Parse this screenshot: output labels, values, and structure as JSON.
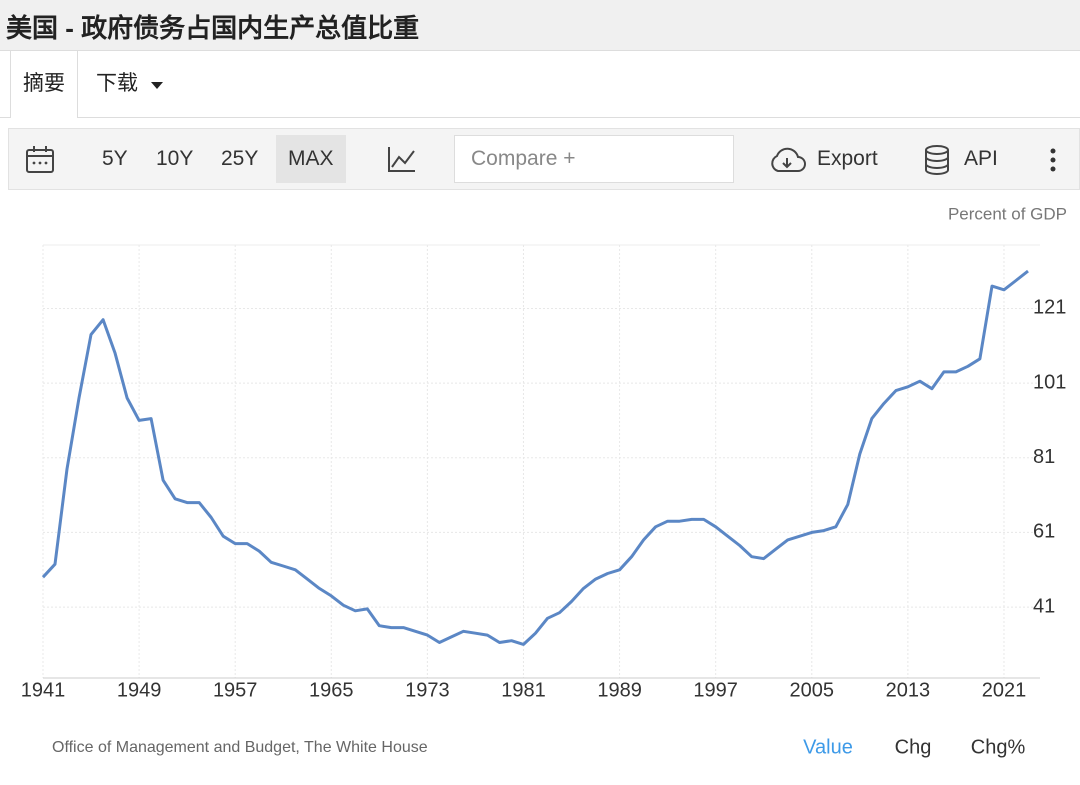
{
  "header": {
    "title": "美国 - 政府债务占国内生产总值比重"
  },
  "tabs": [
    "摘要",
    "下载"
  ],
  "toolbar": {
    "ranges": [
      "5Y",
      "10Y",
      "25Y",
      "MAX"
    ],
    "compare": "Compare +",
    "export": "Export",
    "api": "API"
  },
  "footer": {
    "source": "Office of Management and Budget, The White House",
    "modes": [
      "Value",
      "Chg",
      "Chg%"
    ]
  },
  "chart_data": {
    "type": "line",
    "unit_label": "Percent of GDP",
    "color": "#5b87c5",
    "x": [
      1941,
      1942,
      1943,
      1944,
      1945,
      1946,
      1947,
      1948,
      1949,
      1950,
      1951,
      1952,
      1953,
      1954,
      1955,
      1956,
      1957,
      1958,
      1959,
      1960,
      1961,
      1962,
      1963,
      1964,
      1965,
      1966,
      1967,
      1968,
      1969,
      1970,
      1971,
      1972,
      1973,
      1974,
      1975,
      1976,
      1977,
      1978,
      1979,
      1980,
      1981,
      1982,
      1983,
      1984,
      1985,
      1986,
      1987,
      1988,
      1989,
      1990,
      1991,
      1992,
      1993,
      1994,
      1995,
      1996,
      1997,
      1998,
      1999,
      2000,
      2001,
      2002,
      2003,
      2004,
      2005,
      2006,
      2007,
      2008,
      2009,
      2010,
      2011,
      2012,
      2013,
      2014,
      2015,
      2016,
      2017,
      2018,
      2019,
      2020,
      2021,
      2022,
      2023
    ],
    "values": [
      49,
      52.5,
      78,
      97,
      114,
      118,
      109,
      97,
      91,
      91.5,
      75,
      70,
      69,
      69,
      65,
      60,
      58,
      58,
      56,
      53,
      52,
      51,
      48.5,
      46,
      44,
      41.5,
      40,
      40.5,
      36,
      35.5,
      35.5,
      34.5,
      33.5,
      31.5,
      33,
      34.5,
      34,
      33.5,
      31.5,
      32,
      31,
      34,
      38,
      39.5,
      42.5,
      46,
      48.5,
      50,
      51,
      54.5,
      59,
      62.5,
      64,
      64,
      64.5,
      64.5,
      62.5,
      60,
      57.5,
      54.5,
      54,
      56.5,
      59,
      60,
      61,
      61.5,
      62.5,
      68.5,
      82,
      91.5,
      95.5,
      99,
      100,
      101.5,
      99.5,
      104,
      104,
      105.5,
      107.5,
      127,
      126,
      128.5,
      131
    ],
    "xlim": [
      1941,
      2024
    ],
    "xticks": [
      1941,
      1949,
      1957,
      1965,
      1973,
      1981,
      1989,
      1997,
      2005,
      2013,
      2021
    ],
    "ylim": [
      22,
      138
    ],
    "yticks": [
      41,
      61,
      81,
      101,
      121
    ],
    "grid": true
  }
}
